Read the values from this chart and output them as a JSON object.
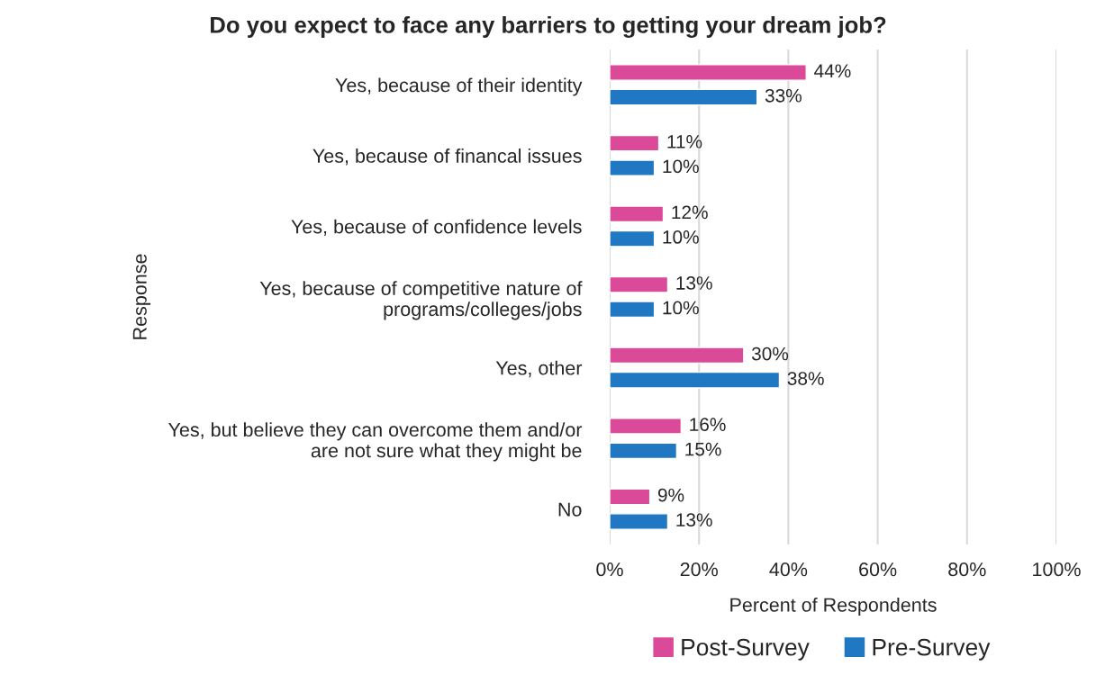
{
  "chart_data": {
    "type": "bar",
    "orientation": "horizontal",
    "title": "Do you expect to face any barriers to getting your dream job?",
    "xlabel": "Percent of Respondents",
    "ylabel": "Response",
    "categories": [
      "Yes, because of their identity",
      "Yes, because of financal issues",
      "Yes, because of confidence levels",
      "Yes, because of competitive nature of\nprograms/colleges/jobs",
      "Yes, other",
      "Yes, but believe they can overcome them and/or\nare not sure what they might be",
      "No"
    ],
    "series": [
      {
        "name": "Post-Survey",
        "color": "#db4a98",
        "values": [
          44,
          11,
          12,
          13,
          30,
          16,
          9
        ],
        "value_labels": [
          "44%",
          "11%",
          "12%",
          "13%",
          "30%",
          "16%",
          "9%"
        ]
      },
      {
        "name": "Pre-Survey",
        "color": "#1f78c1",
        "values": [
          33,
          10,
          10,
          10,
          38,
          15,
          13
        ],
        "value_labels": [
          "33%",
          "10%",
          "10%",
          "10%",
          "38%",
          "15%",
          "13%"
        ]
      }
    ],
    "xlim": [
      0,
      100
    ],
    "xticks": [
      {
        "value": 0,
        "label": "0%"
      },
      {
        "value": 20,
        "label": "20%"
      },
      {
        "value": 40,
        "label": "40%"
      },
      {
        "value": 60,
        "label": "60%"
      },
      {
        "value": 80,
        "label": "80%"
      },
      {
        "value": 100,
        "label": "100%"
      }
    ],
    "grid": "x",
    "legend": "bottom"
  }
}
